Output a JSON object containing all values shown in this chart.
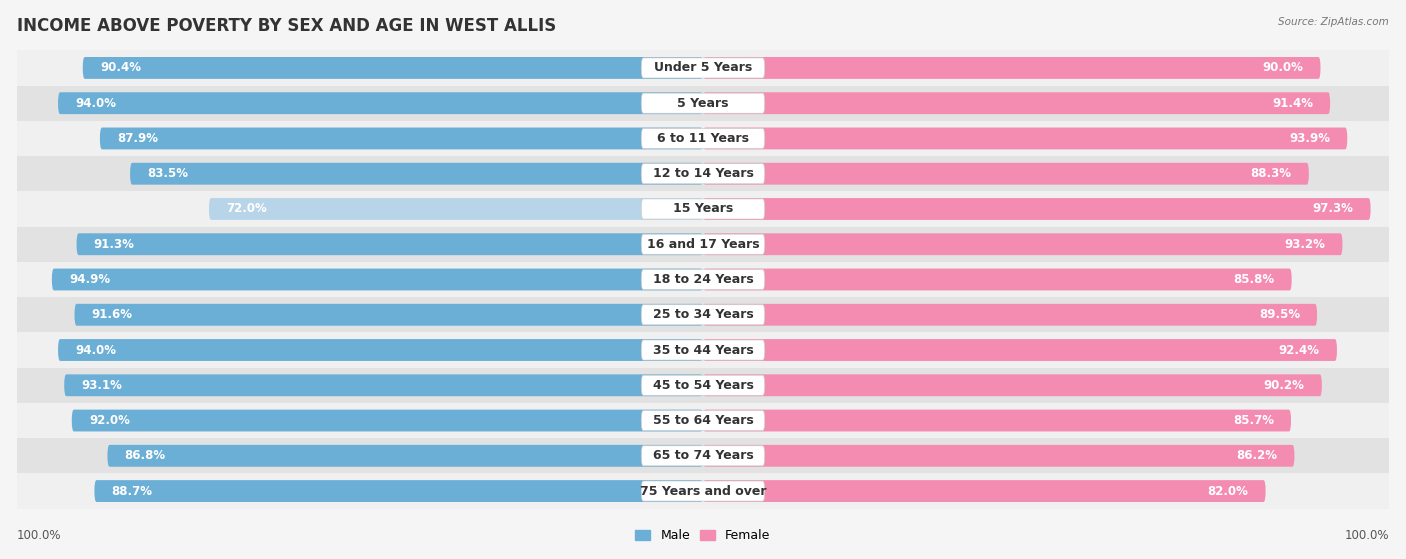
{
  "title": "INCOME ABOVE POVERTY BY SEX AND AGE IN WEST ALLIS",
  "source": "Source: ZipAtlas.com",
  "categories": [
    "Under 5 Years",
    "5 Years",
    "6 to 11 Years",
    "12 to 14 Years",
    "15 Years",
    "16 and 17 Years",
    "18 to 24 Years",
    "25 to 34 Years",
    "35 to 44 Years",
    "45 to 54 Years",
    "55 to 64 Years",
    "65 to 74 Years",
    "75 Years and over"
  ],
  "male_values": [
    90.4,
    94.0,
    87.9,
    83.5,
    72.0,
    91.3,
    94.9,
    91.6,
    94.0,
    93.1,
    92.0,
    86.8,
    88.7
  ],
  "female_values": [
    90.0,
    91.4,
    93.9,
    88.3,
    97.3,
    93.2,
    85.8,
    89.5,
    92.4,
    90.2,
    85.7,
    86.2,
    82.0
  ],
  "male_color": "#6baed6",
  "male_color_light": "#b8d4e8",
  "female_color": "#f48cb1",
  "female_color_light": "#f9c0d5",
  "row_bg_light": "#f0f0f0",
  "row_bg_dark": "#e2e2e2",
  "bar_track_color": "#e8e8e8",
  "fig_bg": "#f5f5f5",
  "label_bg": "#ffffff",
  "max_value": 100.0,
  "title_fontsize": 12,
  "label_fontsize": 9,
  "value_fontsize": 8.5,
  "axis_fontsize": 8.5
}
